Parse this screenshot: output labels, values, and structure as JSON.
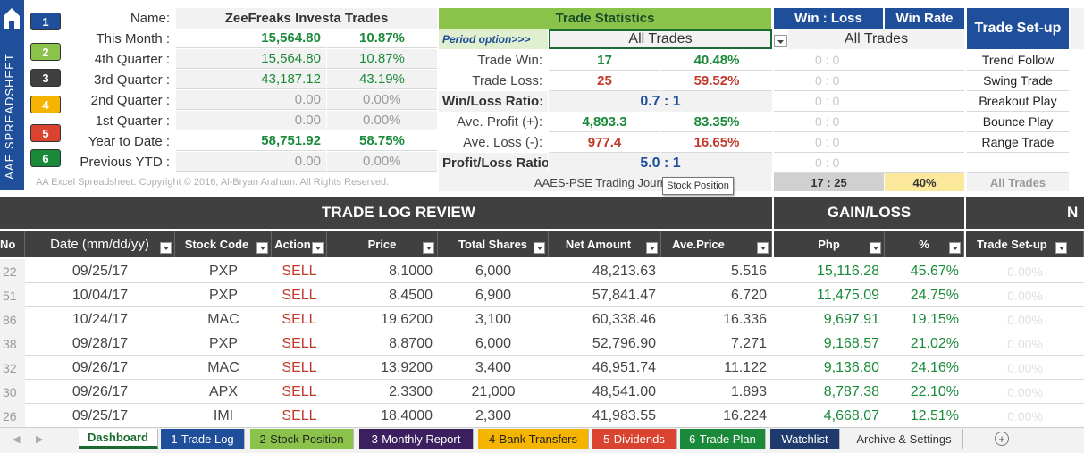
{
  "sidebar": {
    "title": "AAE SPREADSHEET",
    "buttons": [
      {
        "label": "1",
        "color": "#1f4e9a"
      },
      {
        "label": "2",
        "color": "#8bc34a"
      },
      {
        "label": "3",
        "color": "#404040"
      },
      {
        "label": "4",
        "color": "#f5b400"
      },
      {
        "label": "5",
        "color": "#d9432f"
      },
      {
        "label": "6",
        "color": "#1a8a3a"
      }
    ]
  },
  "summary": {
    "name_label": "Name:",
    "name_value": "ZeeFreaks Investa Trades",
    "rows": [
      {
        "label": "This Month :",
        "amount": "15,564.80",
        "pct": "10.87%"
      },
      {
        "label": "4th Quarter :",
        "amount": "15,564.80",
        "pct": "10.87%"
      },
      {
        "label": "3rd Quarter :",
        "amount": "43,187.12",
        "pct": "43.19%"
      },
      {
        "label": "2nd Quarter :",
        "amount": "0.00",
        "pct": "0.00%"
      },
      {
        "label": "1st Quarter :",
        "amount": "0.00",
        "pct": "0.00%"
      },
      {
        "label": "Year to Date :",
        "amount": "58,751.92",
        "pct": "58.75%"
      },
      {
        "label": "Previous YTD :",
        "amount": "0.00",
        "pct": "0.00%"
      }
    ],
    "copyright": "AA Excel Spreadsheet. Copyright © 2016, Al-Bryan Araham. All Rights Reserved."
  },
  "stats": {
    "title": "Trade Statistics",
    "period_label": "Period option>>>",
    "period_value": "All Trades",
    "trade_win_label": "Trade Win:",
    "trade_win_count": "17",
    "trade_win_pct": "40.48%",
    "trade_loss_label": "Trade Loss:",
    "trade_loss_count": "25",
    "trade_loss_pct": "59.52%",
    "wl_ratio_label": "Win/Loss Ratio:",
    "wl_ratio_value": "0.7 : 1",
    "ave_profit_label": "Ave. Profit (+):",
    "ave_profit_value": "4,893.3",
    "ave_profit_pct": "83.35%",
    "ave_loss_label": "Ave. Loss (-):",
    "ave_loss_value": "977.4",
    "ave_loss_pct": "16.65%",
    "pl_ratio_label": "Profit/Loss Ratio:",
    "pl_ratio_value": "5.0 : 1",
    "journal_label": "AAES-PSE Trading Journal",
    "tooltip": "Stock Position"
  },
  "winloss": {
    "header_wl": "Win : Loss",
    "header_wr": "Win Rate",
    "dropdown_value": "All Trades",
    "rows": [
      "0 : 0",
      "0 : 0",
      "0 : 0",
      "0 : 0",
      "0 : 0",
      "0 : 0"
    ],
    "total_wl": "17 : 25",
    "total_wr": "40%"
  },
  "setup": {
    "header": "Trade Set-up",
    "items": [
      "Trend Follow",
      "Swing Trade",
      "Breakout Play",
      "Bounce Play",
      "Range Trade"
    ],
    "footer": "All Trades"
  },
  "log": {
    "title": "TRADE LOG REVIEW",
    "gain_title": "GAIN/LOSS",
    "extra_title": "N",
    "columns": [
      "No",
      "Date (mm/dd/yy)",
      "Stock Code",
      "Action",
      "Price",
      "Total Shares",
      "Net Amount",
      "Ave.Price",
      "Php",
      "%",
      "Trade Set-up"
    ],
    "rows": [
      {
        "no": "22",
        "date": "09/25/17",
        "code": "PXP",
        "action": "SELL",
        "price": "8.1000",
        "shares": "6,000",
        "net": "48,213.63",
        "ave": "5.516",
        "php": "15,116.28",
        "pct": "45.67%",
        "setup": "0.00%"
      },
      {
        "no": "51",
        "date": "10/04/17",
        "code": "PXP",
        "action": "SELL",
        "price": "8.4500",
        "shares": "6,900",
        "net": "57,841.47",
        "ave": "6.720",
        "php": "11,475.09",
        "pct": "24.75%",
        "setup": "0.00%"
      },
      {
        "no": "86",
        "date": "10/24/17",
        "code": "MAC",
        "action": "SELL",
        "price": "19.6200",
        "shares": "3,100",
        "net": "60,338.46",
        "ave": "16.336",
        "php": "9,697.91",
        "pct": "19.15%",
        "setup": "0.00%"
      },
      {
        "no": "38",
        "date": "09/28/17",
        "code": "PXP",
        "action": "SELL",
        "price": "8.8700",
        "shares": "6,000",
        "net": "52,796.90",
        "ave": "7.271",
        "php": "9,168.57",
        "pct": "21.02%",
        "setup": "0.00%"
      },
      {
        "no": "32",
        "date": "09/26/17",
        "code": "MAC",
        "action": "SELL",
        "price": "13.9200",
        "shares": "3,400",
        "net": "46,951.74",
        "ave": "11.122",
        "php": "9,136.80",
        "pct": "24.16%",
        "setup": "0.00%"
      },
      {
        "no": "30",
        "date": "09/26/17",
        "code": "APX",
        "action": "SELL",
        "price": "2.3300",
        "shares": "21,000",
        "net": "48,541.00",
        "ave": "1.893",
        "php": "8,787.38",
        "pct": "22.10%",
        "setup": "0.00%"
      },
      {
        "no": "26",
        "date": "09/25/17",
        "code": "IMI",
        "action": "SELL",
        "price": "18.4000",
        "shares": "2,300",
        "net": "41,983.55",
        "ave": "16.224",
        "php": "4,668.07",
        "pct": "12.51%",
        "setup": "0.00%"
      }
    ]
  },
  "tabs": [
    {
      "label": "Dashboard",
      "bg": "#ffffff",
      "fg": "#1a6b30"
    },
    {
      "label": "1-Trade Log",
      "bg": "#1f4e9a",
      "fg": "#ffffff"
    },
    {
      "label": "2-Stock Position",
      "bg": "#8bc34a",
      "fg": "#222222"
    },
    {
      "label": "3-Monthly Report",
      "bg": "#3b1f5e",
      "fg": "#ffffff"
    },
    {
      "label": "4-Bank Transfers",
      "bg": "#f5b400",
      "fg": "#222222"
    },
    {
      "label": "5-Dividends",
      "bg": "#d9432f",
      "fg": "#ffffff"
    },
    {
      "label": "6-Trade Plan",
      "bg": "#1a8a3a",
      "fg": "#ffffff"
    },
    {
      "label": "Watchlist",
      "bg": "#1f3b6e",
      "fg": "#ffffff"
    },
    {
      "label": "Archive & Settings",
      "bg": "#f2f2f2",
      "fg": "#333333"
    }
  ]
}
